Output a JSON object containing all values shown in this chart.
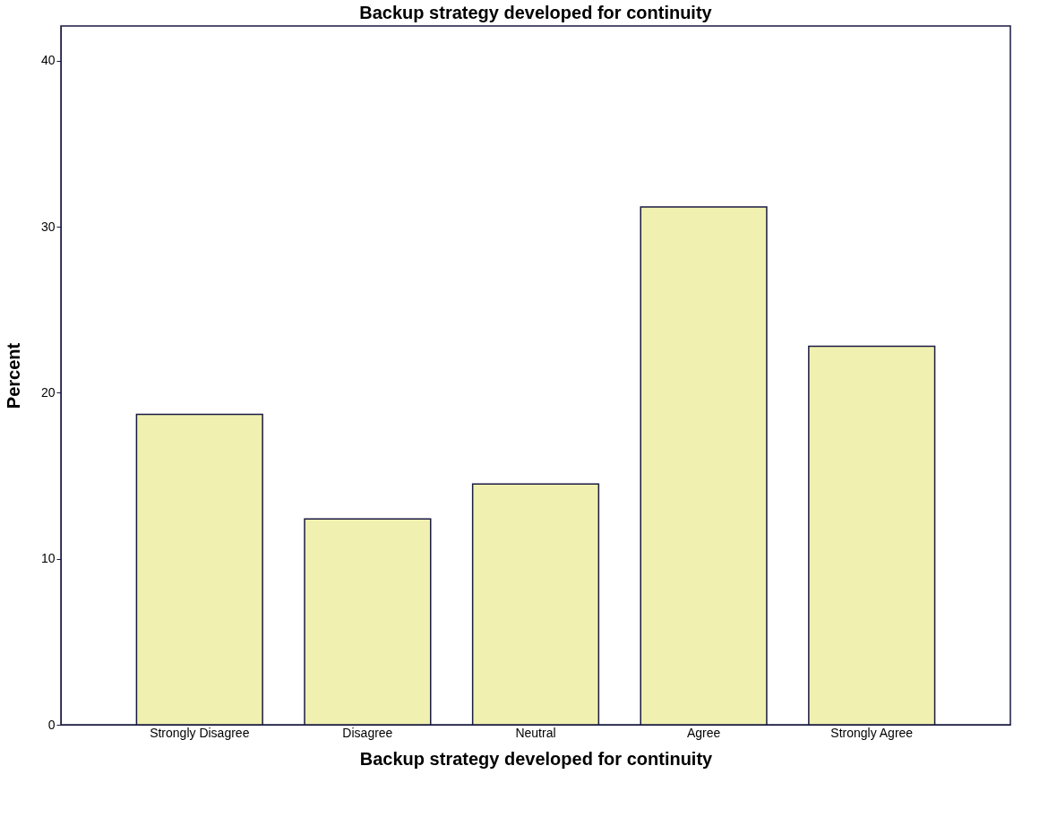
{
  "chart_data": {
    "type": "bar",
    "title": "Backup strategy developed for continuity",
    "xlabel": "Backup strategy developed for continuity",
    "ylabel": "Percent",
    "categories": [
      "Strongly Disagree",
      "Disagree",
      "Neutral",
      "Agree",
      "Strongly Agree"
    ],
    "values": [
      18.7,
      12.4,
      14.5,
      31.2,
      22.8
    ],
    "color": "#f0f0b0",
    "ylim": [
      0,
      42.1
    ],
    "yticks": [
      0,
      10,
      20,
      30,
      40
    ],
    "grid": false
  }
}
